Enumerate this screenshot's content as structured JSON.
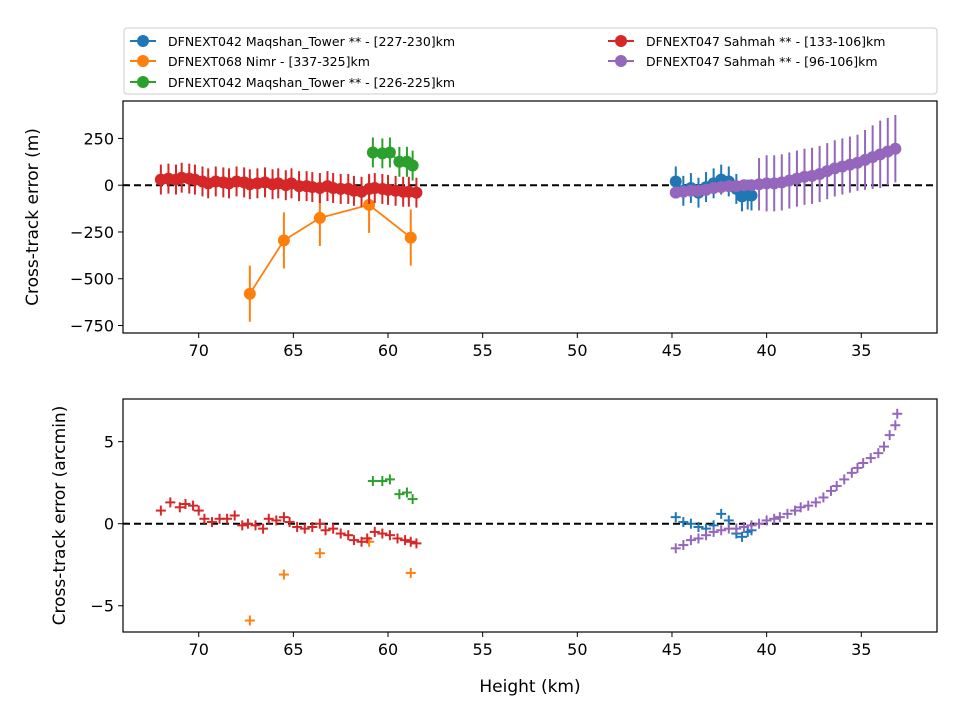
{
  "chart_data": {
    "type": "scatter",
    "legend": {
      "placement": "top",
      "columns": 2,
      "entries": [
        {
          "label": "DFNEXT042 Maqshan_Tower **  - [227-230]km",
          "color": "#1f77b4"
        },
        {
          "label": "DFNEXT068 Nimr - [337-325]km",
          "color": "#ff7f0e"
        },
        {
          "label": "DFNEXT042 Maqshan_Tower **  - [226-225]km",
          "color": "#2ca02c"
        },
        {
          "label": "DFNEXT047 Sahmah **  - [133-106]km",
          "color": "#d62728"
        },
        {
          "label": "DFNEXT047 Sahmah **  - [96-106]km",
          "color": "#9467bd"
        }
      ]
    },
    "panels": [
      {
        "id": "top",
        "ylabel": "Cross-track error (m)",
        "xlabel": "",
        "xlim": [
          74,
          31
        ],
        "ylim": [
          -790,
          450
        ],
        "x_ticks": [
          70,
          65,
          60,
          55,
          50,
          45,
          40,
          35
        ],
        "y_ticks": [
          250,
          0,
          -250,
          -500,
          -750
        ],
        "y_tick_labels": [
          "250",
          "0",
          "−250",
          "−500",
          "−750"
        ],
        "zero_line": true,
        "series": [
          {
            "color": "#1f77b4",
            "marker": "o",
            "line": true,
            "x": [
              44.8,
              44.4,
              44.0,
              43.6,
              43.2,
              42.8,
              42.4,
              42.0,
              41.6,
              41.3,
              41.0,
              40.8
            ],
            "y": [
              20,
              -30,
              -15,
              -40,
              -10,
              10,
              30,
              20,
              -20,
              -60,
              -50,
              -55
            ],
            "err": [
              80,
              80,
              80,
              80,
              80,
              80,
              80,
              80,
              80,
              80,
              80,
              80
            ]
          },
          {
            "color": "#ff7f0e",
            "marker": "o",
            "line": true,
            "x": [
              67.3,
              65.5,
              63.6,
              61.0,
              58.8
            ],
            "y": [
              -580,
              -295,
              -175,
              -105,
              -280
            ],
            "err": [
              150,
              150,
              150,
              150,
              150
            ]
          },
          {
            "color": "#2ca02c",
            "marker": "o",
            "line": true,
            "x": [
              60.8,
              60.3,
              59.9,
              59.4,
              59.0,
              58.7
            ],
            "y": [
              175,
              170,
              175,
              125,
              125,
              105
            ],
            "err": [
              80,
              80,
              80,
              80,
              80,
              80
            ]
          },
          {
            "color": "#d62728",
            "marker": "o",
            "line": true,
            "x": [
              72.0,
              71.6,
              71.2,
              70.9,
              70.5,
              70.2,
              69.8,
              69.5,
              69.1,
              68.7,
              68.4,
              68.0,
              67.6,
              67.3,
              66.9,
              66.5,
              66.1,
              65.8,
              65.4,
              65.1,
              64.7,
              64.3,
              64.0,
              63.6,
              63.2,
              62.9,
              62.5,
              62.1,
              61.8,
              61.4,
              61.0,
              60.7,
              60.3,
              60.0,
              59.6,
              59.2,
              58.9,
              58.5
            ],
            "y": [
              30,
              35,
              30,
              40,
              35,
              30,
              20,
              10,
              20,
              15,
              10,
              20,
              15,
              5,
              10,
              15,
              5,
              10,
              0,
              10,
              -5,
              -5,
              -10,
              -15,
              -5,
              -15,
              -20,
              -20,
              -30,
              -35,
              -20,
              -15,
              -20,
              -25,
              -30,
              -35,
              -35,
              -40
            ],
            "err": [
              80,
              80,
              80,
              80,
              80,
              80,
              80,
              80,
              80,
              80,
              80,
              80,
              80,
              80,
              80,
              80,
              80,
              80,
              80,
              80,
              80,
              80,
              80,
              80,
              80,
              80,
              80,
              80,
              80,
              80,
              80,
              80,
              80,
              80,
              80,
              80,
              80,
              80
            ]
          },
          {
            "color": "#9467bd",
            "marker": "o",
            "line": true,
            "x": [
              44.8,
              44.4,
              44.0,
              43.6,
              43.2,
              42.8,
              42.4,
              42.0,
              41.6,
              41.2,
              40.8,
              40.4,
              40.0,
              39.6,
              39.2,
              38.8,
              38.4,
              38.0,
              37.6,
              37.2,
              36.8,
              36.4,
              36.0,
              35.6,
              35.2,
              34.8,
              34.4,
              34.0,
              33.6,
              33.2
            ],
            "y": [
              -40,
              -35,
              -30,
              -30,
              -25,
              -15,
              -10,
              -5,
              -5,
              0,
              0,
              5,
              10,
              10,
              15,
              25,
              35,
              45,
              50,
              60,
              75,
              90,
              100,
              110,
              120,
              135,
              150,
              165,
              180,
              195
            ],
            "err": [
              15,
              15,
              20,
              20,
              20,
              25,
              25,
              25,
              25,
              30,
              30,
              140,
              150,
              150,
              150,
              150,
              150,
              150,
              150,
              150,
              150,
              150,
              150,
              150,
              150,
              160,
              170,
              180,
              180,
              180
            ]
          }
        ]
      },
      {
        "id": "bottom",
        "ylabel": "Cross-track error (arcmin)",
        "xlabel": "Height (km)",
        "xlim": [
          74,
          31
        ],
        "ylim": [
          -6.6,
          7.6
        ],
        "x_ticks": [
          70,
          65,
          60,
          55,
          50,
          45,
          40,
          35
        ],
        "y_ticks": [
          5,
          0,
          -5
        ],
        "y_tick_labels": [
          "5",
          "0",
          "−5"
        ],
        "zero_line": true,
        "series": [
          {
            "color": "#1f77b4",
            "marker": "+",
            "line": false,
            "x": [
              44.8,
              44.4,
              44.0,
              43.6,
              43.2,
              42.8,
              42.4,
              42.0,
              41.6,
              41.3,
              41.0,
              40.8
            ],
            "y": [
              0.4,
              0.1,
              0.0,
              -0.2,
              -0.3,
              -0.1,
              0.6,
              0.2,
              -0.6,
              -0.8,
              -0.5,
              -0.4
            ]
          },
          {
            "color": "#ff7f0e",
            "marker": "+",
            "line": false,
            "x": [
              67.3,
              65.5,
              63.6,
              61.0,
              58.8
            ],
            "y": [
              -5.9,
              -3.1,
              -1.8,
              -1.1,
              -3.0
            ]
          },
          {
            "color": "#2ca02c",
            "marker": "+",
            "line": false,
            "x": [
              60.8,
              60.3,
              59.9,
              59.4,
              59.0,
              58.7
            ],
            "y": [
              2.6,
              2.6,
              2.7,
              1.8,
              1.9,
              1.5
            ]
          },
          {
            "color": "#d62728",
            "marker": "+",
            "line": false,
            "x": [
              72.0,
              71.5,
              71.0,
              70.7,
              70.3,
              70.0,
              69.7,
              69.3,
              68.9,
              68.5,
              68.1,
              67.7,
              67.4,
              67.0,
              66.6,
              66.3,
              65.9,
              65.5,
              65.2,
              64.8,
              64.4,
              64.0,
              63.6,
              63.3,
              62.9,
              62.5,
              62.1,
              61.8,
              61.4,
              61.1,
              60.7,
              60.3,
              59.9,
              59.5,
              59.1,
              58.8,
              58.5
            ],
            "y": [
              0.8,
              1.3,
              1.0,
              1.2,
              1.1,
              0.8,
              0.3,
              0.1,
              0.3,
              0.3,
              0.5,
              -0.1,
              0.0,
              -0.1,
              -0.3,
              0.3,
              0.2,
              0.4,
              0.1,
              -0.2,
              -0.3,
              -0.2,
              0.0,
              -0.4,
              -0.3,
              -0.6,
              -0.7,
              -1.0,
              -1.1,
              -0.9,
              -0.5,
              -0.6,
              -0.7,
              -0.9,
              -1.0,
              -1.1,
              -1.2
            ]
          },
          {
            "color": "#9467bd",
            "marker": "+",
            "line": false,
            "x": [
              44.8,
              44.4,
              44.0,
              43.6,
              43.2,
              42.8,
              42.4,
              42.0,
              41.6,
              41.2,
              40.8,
              40.4,
              40.0,
              39.6,
              39.3,
              38.9,
              38.5,
              38.2,
              37.8,
              37.4,
              37.0,
              36.6,
              36.3,
              35.9,
              35.5,
              35.2,
              34.9,
              34.5,
              34.1,
              33.8,
              33.5,
              33.2,
              33.1
            ],
            "y": [
              -1.5,
              -1.3,
              -1.0,
              -0.9,
              -0.7,
              -0.5,
              -0.4,
              -0.3,
              -0.3,
              -0.2,
              -0.1,
              0.0,
              0.2,
              0.3,
              0.4,
              0.6,
              0.8,
              1.0,
              1.1,
              1.3,
              1.6,
              2.0,
              2.3,
              2.7,
              3.1,
              3.4,
              3.7,
              4.0,
              4.3,
              4.7,
              5.4,
              6.0,
              6.7
            ]
          }
        ]
      }
    ]
  }
}
